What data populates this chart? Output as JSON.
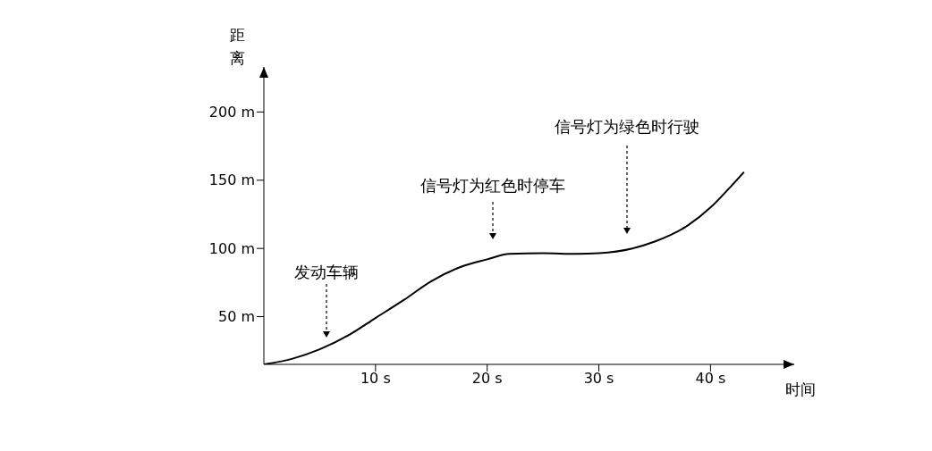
{
  "chart_data": {
    "type": "line",
    "xlabel": "时间",
    "ylabel": "距离",
    "x": [
      0,
      2.5,
      5,
      7.5,
      10,
      12.5,
      15,
      17.5,
      20,
      22,
      25,
      28,
      30,
      33,
      35,
      38,
      40,
      42,
      43
    ],
    "series": [
      {
        "color": "#000000",
        "values": [
          15,
          19,
          26,
          36,
          49,
          62,
          76,
          86,
          92,
          96,
          96.5,
          96,
          96.5,
          100,
          105,
          117,
          130,
          147,
          156
        ]
      }
    ],
    "xlim": [
      0,
      47.5
    ],
    "ylim": [
      15,
      233
    ],
    "xticks": [
      {
        "value": 10,
        "label": "10 s"
      },
      {
        "value": 20,
        "label": "20 s"
      },
      {
        "value": 30,
        "label": "30 s"
      },
      {
        "value": 40,
        "label": "40 s"
      }
    ],
    "yticks": [
      {
        "value": 50,
        "label": "50 m"
      },
      {
        "value": 100,
        "label": "100 m"
      },
      {
        "value": 150,
        "label": "150 m"
      },
      {
        "value": 200,
        "label": "200 m"
      }
    ],
    "grid": false,
    "legend": false,
    "marker": "none",
    "line_style": "solid",
    "annotations": [
      "发动车辆",
      "信号灯为红色时停车",
      "信号灯为绿色时行驶"
    ]
  }
}
